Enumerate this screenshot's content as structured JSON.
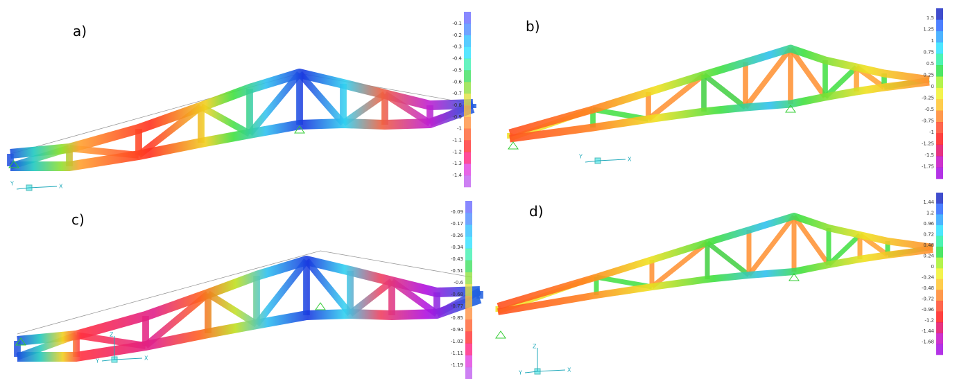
{
  "panels": [
    {
      "label": "a)",
      "scale": [
        "-0.1",
        "-0.2",
        "-0.3",
        "-0.4",
        "-0.5",
        "-0.6",
        "-0.7",
        "-0.8",
        "-0.9",
        "-1",
        "-1.1",
        "-1.2",
        "-1.3",
        "-1.4"
      ],
      "axes": [
        "Y",
        "X"
      ]
    },
    {
      "label": "b)",
      "scale": [
        "1.5",
        "1.25",
        "1",
        "0.75",
        "0.5",
        "0.25",
        "0",
        "-0.25",
        "-0.5",
        "-0.75",
        "-1",
        "-1.25",
        "-1.5",
        "-1.75"
      ],
      "axes": [
        "Y",
        "X"
      ]
    },
    {
      "label": "c)",
      "scale": [
        "-0.09",
        "-0.17",
        "-0.26",
        "-0.34",
        "-0.43",
        "-0.51",
        "-0.6",
        "-0.68",
        "-0.77",
        "-0.85",
        "-0.94",
        "-1.02",
        "-1.11",
        "-1.19"
      ],
      "axes": [
        "Z",
        "Y",
        "X"
      ]
    },
    {
      "label": "d)",
      "scale": [
        "1.44",
        "1.2",
        "0.96",
        "0.72",
        "0.48",
        "0.24",
        "0",
        "-0.24",
        "-0.48",
        "-0.72",
        "-0.96",
        "-1.2",
        "-1.44",
        "-1.68"
      ],
      "axes": [
        "Z",
        "Y",
        "X"
      ]
    }
  ]
}
